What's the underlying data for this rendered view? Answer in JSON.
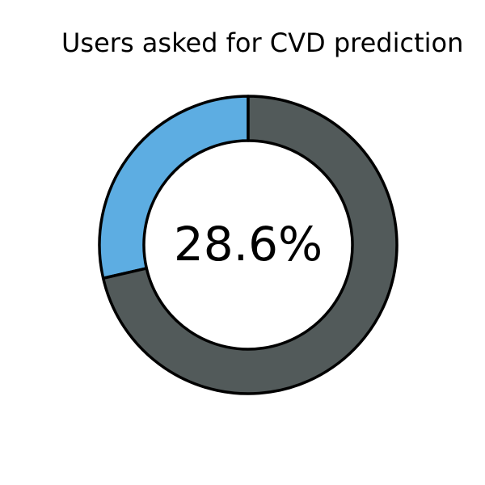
{
  "chart_data": {
    "type": "pie",
    "title": "Users asked for CVD prediction",
    "center_label": "28.6%",
    "slices": [
      {
        "value": 28.6,
        "color": "#5DADE2"
      },
      {
        "value": 71.4,
        "color": "#525A5A"
      }
    ]
  }
}
